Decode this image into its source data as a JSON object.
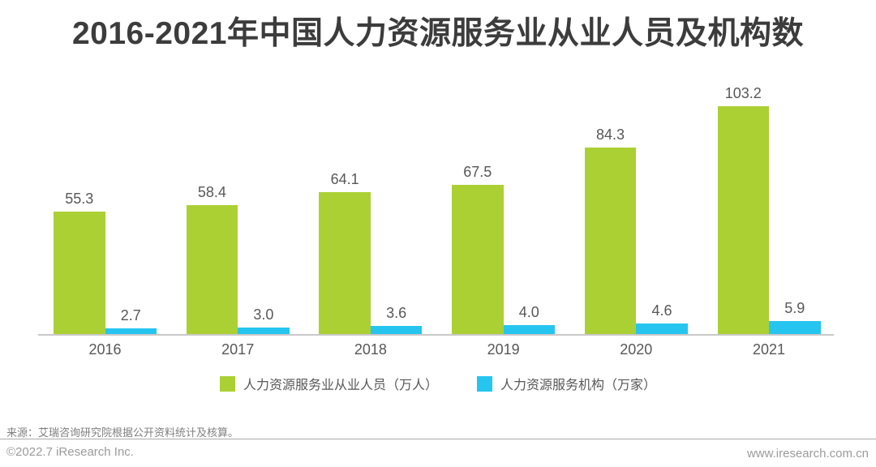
{
  "title": "2016-2021年中国人力资源服务业从业人员及机构数",
  "chart_data": {
    "type": "bar",
    "title": "2016-2021年中国人力资源服务业从业人员及机构数",
    "categories": [
      "2016",
      "2017",
      "2018",
      "2019",
      "2020",
      "2021"
    ],
    "series": [
      {
        "name": "人力资源服务业从业人员（万人）",
        "color": "#abd034",
        "values": [
          55.3,
          58.4,
          64.1,
          67.5,
          84.3,
          103.2
        ]
      },
      {
        "name": "人力资源服务机构（万家）",
        "color": "#25c5f0",
        "values": [
          2.7,
          3.0,
          3.6,
          4.0,
          4.6,
          5.9
        ]
      }
    ],
    "ylim": [
      0,
      110
    ],
    "grid": false,
    "y_axis_shown": false,
    "value_labels_shown": true,
    "legend_position": "bottom",
    "axis_line_color": "#c9c9c9"
  },
  "footer": {
    "source": "来源：艾瑞咨询研究院根据公开资料统计及核算。",
    "copyright": "©2022.7 iResearch Inc.",
    "website": "www.iresearch.com.cn"
  },
  "colors": {
    "title_text": "#3c3c3c",
    "label_text": "#595757",
    "muted_text": "#9b9b9b"
  }
}
